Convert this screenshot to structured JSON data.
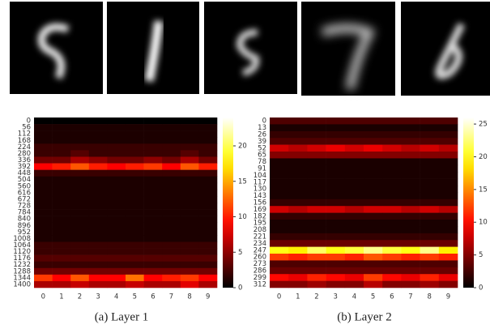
{
  "chart_data": [
    {
      "type": "heatmap",
      "caption": "(a) Layer 1",
      "cmap": "hot",
      "rows": [
        0,
        56,
        112,
        168,
        224,
        280,
        336,
        392,
        448,
        504,
        560,
        616,
        672,
        728,
        784,
        840,
        896,
        952,
        1008,
        1064,
        1120,
        1176,
        1232,
        1288,
        1344,
        1400
      ],
      "categories": [
        "0",
        "1",
        "2",
        "3",
        "4",
        "5",
        "6",
        "7",
        "8",
        "9"
      ],
      "values": [
        [
          0,
          0,
          0,
          0,
          0,
          0,
          0,
          0,
          0,
          0
        ],
        [
          1,
          1,
          1,
          1,
          1,
          1,
          1,
          1,
          1,
          1
        ],
        [
          1,
          1,
          1,
          1,
          1,
          1,
          1,
          1,
          1,
          1
        ],
        [
          1,
          1,
          1,
          1,
          1,
          1,
          1,
          1,
          1,
          1
        ],
        [
          2,
          2,
          2,
          2,
          2,
          2,
          2,
          2,
          2,
          2
        ],
        [
          2,
          2,
          3,
          2,
          2,
          2,
          2,
          2,
          3,
          2
        ],
        [
          4,
          4,
          6,
          5,
          4,
          4,
          5,
          4,
          6,
          4
        ],
        [
          9,
          10,
          12,
          10,
          9,
          10,
          11,
          9,
          12,
          10
        ],
        [
          2,
          2,
          2,
          2,
          2,
          2,
          2,
          2,
          2,
          2
        ],
        [
          1,
          1,
          1,
          1,
          1,
          1,
          1,
          1,
          1,
          1
        ],
        [
          1,
          1,
          1,
          1,
          1,
          1,
          1,
          1,
          1,
          1
        ],
        [
          1,
          1,
          1,
          1,
          1,
          1,
          1,
          1,
          1,
          1
        ],
        [
          1,
          1,
          1,
          1,
          1,
          1,
          1,
          1,
          1,
          1
        ],
        [
          1,
          1,
          1,
          1,
          1,
          1,
          1,
          1,
          1,
          1
        ],
        [
          1,
          1,
          1,
          1,
          1,
          1,
          1,
          1,
          1,
          1
        ],
        [
          1,
          1,
          1,
          1,
          1,
          1,
          1,
          1,
          1,
          1
        ],
        [
          1,
          1,
          1,
          1,
          1,
          1,
          1,
          1,
          1,
          1
        ],
        [
          1,
          1,
          1,
          1,
          1,
          1,
          1,
          1,
          1,
          1
        ],
        [
          1,
          1,
          1,
          1,
          1,
          1,
          1,
          1,
          1,
          1
        ],
        [
          2,
          2,
          2,
          2,
          2,
          2,
          2,
          2,
          2,
          2
        ],
        [
          2,
          2,
          2,
          2,
          2,
          2,
          2,
          2,
          2,
          2
        ],
        [
          3,
          3,
          3,
          3,
          3,
          3,
          3,
          3,
          3,
          3
        ],
        [
          2,
          2,
          2,
          2,
          2,
          2,
          2,
          2,
          2,
          2
        ],
        [
          4,
          4,
          4,
          4,
          4,
          4,
          4,
          4,
          4,
          4
        ],
        [
          11,
          9,
          12,
          9,
          9,
          13,
          9,
          10,
          11,
          9
        ],
        [
          6,
          6,
          7,
          6,
          6,
          7,
          6,
          6,
          8,
          6
        ]
      ],
      "zlim": [
        0,
        24
      ],
      "zticks": [
        0,
        5,
        10,
        15,
        20
      ]
    },
    {
      "type": "heatmap",
      "caption": "(b) Layer 2",
      "cmap": "hot",
      "rows": [
        0,
        13,
        26,
        39,
        52,
        65,
        78,
        91,
        104,
        117,
        130,
        143,
        156,
        169,
        182,
        195,
        208,
        221,
        234,
        247,
        260,
        273,
        286,
        299,
        312
      ],
      "categories": [
        "0",
        "1",
        "2",
        "3",
        "4",
        "5",
        "6",
        "7",
        "8",
        "9"
      ],
      "values": [
        [
          3,
          3,
          3,
          3,
          3,
          3,
          3,
          3,
          3,
          3
        ],
        [
          1,
          1,
          1,
          1,
          1,
          1,
          1,
          1,
          1,
          1
        ],
        [
          2,
          2,
          2,
          2,
          2,
          2,
          2,
          2,
          2,
          2
        ],
        [
          3,
          3,
          3,
          3,
          3,
          3,
          3,
          3,
          3,
          3
        ],
        [
          8,
          7,
          8,
          9,
          8,
          9,
          8,
          7,
          8,
          7
        ],
        [
          5,
          5,
          5,
          5,
          5,
          5,
          5,
          5,
          5,
          5
        ],
        [
          1,
          1,
          1,
          1,
          1,
          1,
          1,
          1,
          1,
          1
        ],
        [
          1,
          1,
          1,
          1,
          1,
          1,
          1,
          1,
          1,
          1
        ],
        [
          1,
          1,
          1,
          1,
          1,
          1,
          1,
          1,
          1,
          1
        ],
        [
          1,
          1,
          1,
          1,
          1,
          1,
          1,
          1,
          1,
          1
        ],
        [
          1,
          1,
          1,
          1,
          1,
          1,
          1,
          1,
          1,
          1
        ],
        [
          1,
          1,
          1,
          1,
          1,
          1,
          1,
          1,
          1,
          1
        ],
        [
          2,
          2,
          2,
          2,
          2,
          2,
          2,
          2,
          2,
          2
        ],
        [
          8,
          7,
          8,
          8,
          7,
          8,
          8,
          7,
          8,
          7
        ],
        [
          2,
          2,
          2,
          2,
          2,
          2,
          2,
          2,
          2,
          2
        ],
        [
          1,
          1,
          1,
          1,
          1,
          1,
          1,
          1,
          1,
          1
        ],
        [
          1,
          1,
          1,
          1,
          1,
          1,
          1,
          1,
          1,
          1
        ],
        [
          2,
          2,
          2,
          2,
          2,
          2,
          2,
          2,
          2,
          2
        ],
        [
          4,
          4,
          4,
          4,
          4,
          4,
          4,
          4,
          4,
          4
        ],
        [
          20,
          19,
          22,
          20,
          21,
          23,
          21,
          20,
          23,
          19
        ],
        [
          12,
          11,
          12,
          12,
          11,
          13,
          12,
          11,
          12,
          11
        ],
        [
          3,
          3,
          3,
          3,
          3,
          3,
          3,
          3,
          3,
          3
        ],
        [
          4,
          4,
          4,
          4,
          4,
          4,
          4,
          4,
          4,
          4
        ],
        [
          10,
          9,
          11,
          10,
          9,
          12,
          10,
          9,
          11,
          9
        ],
        [
          5,
          5,
          6,
          5,
          5,
          7,
          5,
          5,
          6,
          5
        ]
      ],
      "zlim": [
        0,
        26
      ],
      "zticks": [
        0,
        5,
        10,
        15,
        20,
        25
      ]
    }
  ]
}
